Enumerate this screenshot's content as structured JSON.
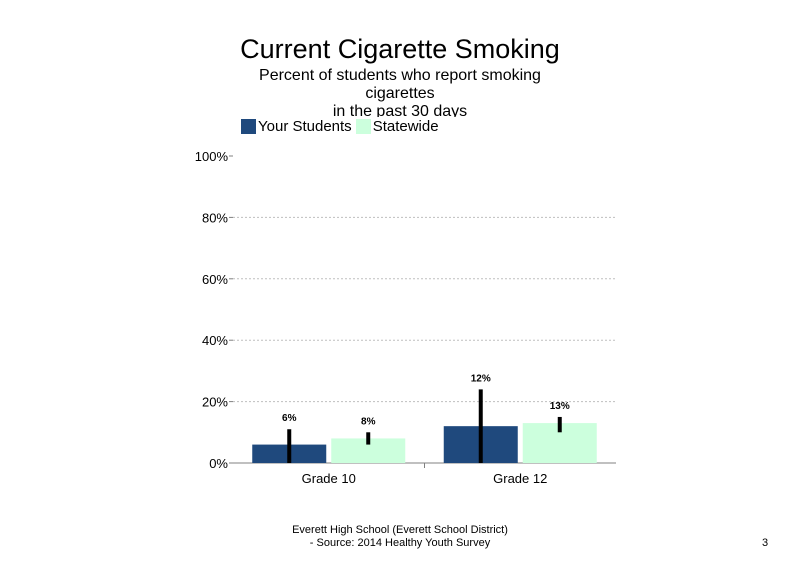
{
  "slide": {
    "title": "Current Cigarette Smoking",
    "subtitle_lines": [
      "Percent of students who report smoking",
      "cigarettes",
      "in the past 30 days"
    ],
    "footer_lines": [
      "Everett High School (Everett School District)",
      "- Source: 2014 Healthy Youth Survey"
    ],
    "page_number": "3"
  },
  "colors": {
    "your_students": "#1f497d",
    "statewide": "#ccffdd",
    "error_bar": "#000000",
    "grid": "#bfbfbf"
  },
  "chart_data": {
    "type": "bar",
    "title": "Current Cigarette Smoking",
    "categories": [
      "Grade 10",
      "Grade 12"
    ],
    "series": [
      {
        "name": "Your Students",
        "values": [
          6,
          12
        ],
        "labels": [
          "6%",
          "12%"
        ],
        "error_low": [
          0,
          0
        ],
        "error_high": [
          11,
          24
        ]
      },
      {
        "name": "Statewide",
        "values": [
          8,
          13
        ],
        "labels": [
          "8%",
          "13%"
        ],
        "error_low": [
          6,
          10
        ],
        "error_high": [
          10,
          15
        ]
      }
    ],
    "y_ticks": [
      {
        "value": 0,
        "label": "0%"
      },
      {
        "value": 20,
        "label": "20%"
      },
      {
        "value": 40,
        "label": "40%"
      },
      {
        "value": 60,
        "label": "60%"
      },
      {
        "value": 80,
        "label": "80%"
      },
      {
        "value": 100,
        "label": "100%"
      }
    ],
    "ylim": [
      0,
      100
    ],
    "grid": true,
    "legend_position": "top-left"
  }
}
